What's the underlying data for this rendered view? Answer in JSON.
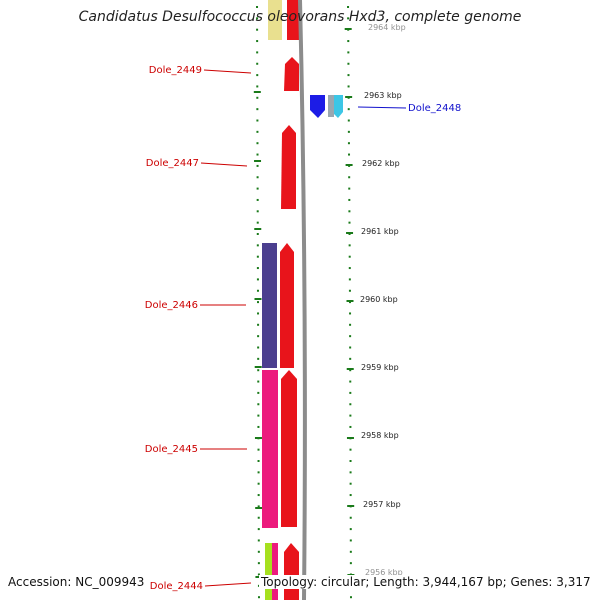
{
  "title": "Candidatus Desulfococcus oleovorans Hxd3, complete genome",
  "footer": {
    "accession": "Accession: NC_009943",
    "summary": "Topology: circular; Length: 3,944,167 bp; Genes: 3,317"
  },
  "kbp_ticks": [
    {
      "label": "2964 kbp"
    },
    {
      "label": "2963 kbp"
    },
    {
      "label": "2962 kbp"
    },
    {
      "label": "2961 kbp"
    },
    {
      "label": "2960 kbp"
    },
    {
      "label": "2959 kbp"
    },
    {
      "label": "2958 kbp"
    },
    {
      "label": "2957 kbp"
    },
    {
      "label": "2956 kbp"
    }
  ],
  "gene_labels": [
    {
      "name": "Dole_2449",
      "color": "#cc0000"
    },
    {
      "name": "Dole_2448",
      "color": "#1010cc"
    },
    {
      "name": "Dole_2447",
      "color": "#cc0000"
    },
    {
      "name": "Dole_2446",
      "color": "#cc0000"
    },
    {
      "name": "Dole_2445",
      "color": "#cc0000"
    },
    {
      "name": "Dole_2444",
      "color": "#cc0000"
    }
  ],
  "colors": {
    "gene_red": "#e8141b",
    "cog_yellow": "#e9e08f",
    "cog_purple": "#4b3f8f",
    "cog_magenta": "#ec1a7d",
    "cog_green": "#a6e01f",
    "gene_blue": "#1c1ce6",
    "cog_cyan": "#3cc6e6",
    "backbone": "#8c8c8c",
    "tick_green": "#1a7a1a"
  }
}
